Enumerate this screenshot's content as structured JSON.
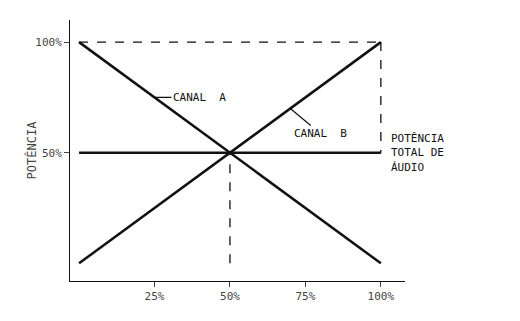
{
  "chart_data": {
    "type": "line",
    "y_label": "POTÊNCIA",
    "color": "#111111",
    "grid": false,
    "xlim": [
      -3,
      108
    ],
    "ylim": [
      -8,
      110
    ],
    "xticks": [
      {
        "value": 25,
        "label": "25%"
      },
      {
        "value": 50,
        "label": "50%"
      },
      {
        "value": 75,
        "label": "75%"
      },
      {
        "value": 100,
        "label": "100%"
      }
    ],
    "yticks": [
      {
        "value": 50,
        "label": "50%"
      },
      {
        "value": 100,
        "label": "100%"
      }
    ],
    "series": [
      {
        "name": "CANAL  A",
        "x": [
          0,
          100
        ],
        "values": [
          100,
          0
        ],
        "line_style": "solid"
      },
      {
        "name": "CANAL  B",
        "x": [
          0,
          100
        ],
        "values": [
          0,
          100
        ],
        "line_style": "solid"
      },
      {
        "name": "POTÊNCIA\nTOTAL DE\nÁUDIO",
        "x": [
          0,
          100
        ],
        "values": [
          50,
          50
        ],
        "line_style": "solid"
      },
      {
        "x": [
          0,
          100
        ],
        "values": [
          100,
          100
        ],
        "line_style": "dashed"
      },
      {
        "x": [
          100,
          100
        ],
        "values": [
          100,
          50
        ],
        "line_style": "dashed"
      },
      {
        "x": [
          50,
          50
        ],
        "values": [
          0,
          50
        ],
        "line_style": "dashed"
      }
    ]
  }
}
